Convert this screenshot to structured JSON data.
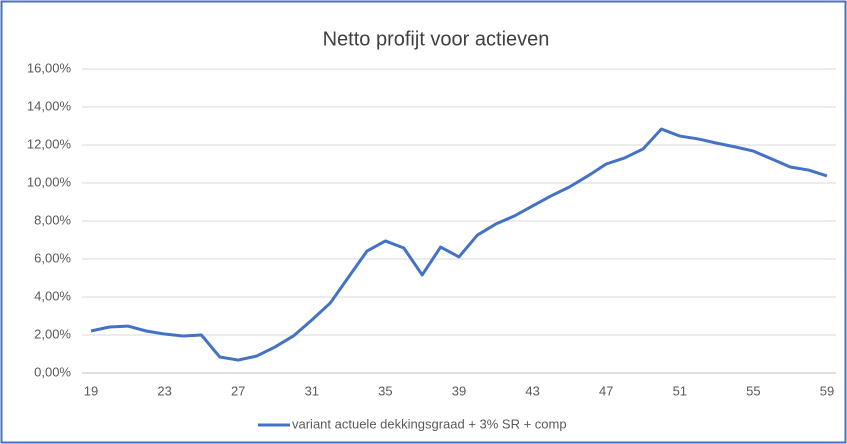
{
  "chart_data": {
    "type": "line",
    "title": "Netto profijt voor actieven",
    "x": [
      19,
      20,
      21,
      22,
      23,
      24,
      25,
      26,
      27,
      28,
      29,
      30,
      31,
      32,
      33,
      34,
      35,
      36,
      37,
      38,
      39,
      40,
      41,
      42,
      43,
      44,
      45,
      46,
      47,
      48,
      49,
      50,
      51,
      52,
      53,
      54,
      55,
      56,
      57,
      58,
      59
    ],
    "series": [
      {
        "name": "variant actuele dekkingsgraad + 3% SR + comp",
        "color": "#4472c4",
        "values": [
          2.21,
          2.42,
          2.47,
          2.21,
          2.05,
          1.95,
          2.0,
          0.84,
          0.68,
          0.89,
          1.37,
          1.95,
          2.79,
          3.68,
          5.05,
          6.42,
          6.95,
          6.58,
          5.16,
          6.63,
          6.11,
          7.26,
          7.84,
          8.26,
          8.79,
          9.32,
          9.79,
          10.37,
          11.0,
          11.32,
          11.79,
          12.84,
          12.47,
          12.32,
          12.1,
          11.9,
          11.68,
          11.26,
          10.84,
          10.68,
          10.37
        ]
      }
    ],
    "xlim": [
      19,
      59
    ],
    "xticks": [
      19,
      23,
      27,
      31,
      35,
      39,
      43,
      47,
      51,
      55,
      59
    ],
    "ylim": [
      0,
      16
    ],
    "yticks": [
      {
        "value": 0,
        "label": "0,00%"
      },
      {
        "value": 2,
        "label": "2,00%"
      },
      {
        "value": 4,
        "label": "4,00%"
      },
      {
        "value": 6,
        "label": "6,00%"
      },
      {
        "value": 8,
        "label": "8,00%"
      },
      {
        "value": 10,
        "label": "10,00%"
      },
      {
        "value": 12,
        "label": "12,00%"
      },
      {
        "value": 14,
        "label": "14,00%"
      },
      {
        "value": 16,
        "label": "16,00%"
      }
    ],
    "grid": true,
    "legend": "bottom"
  }
}
